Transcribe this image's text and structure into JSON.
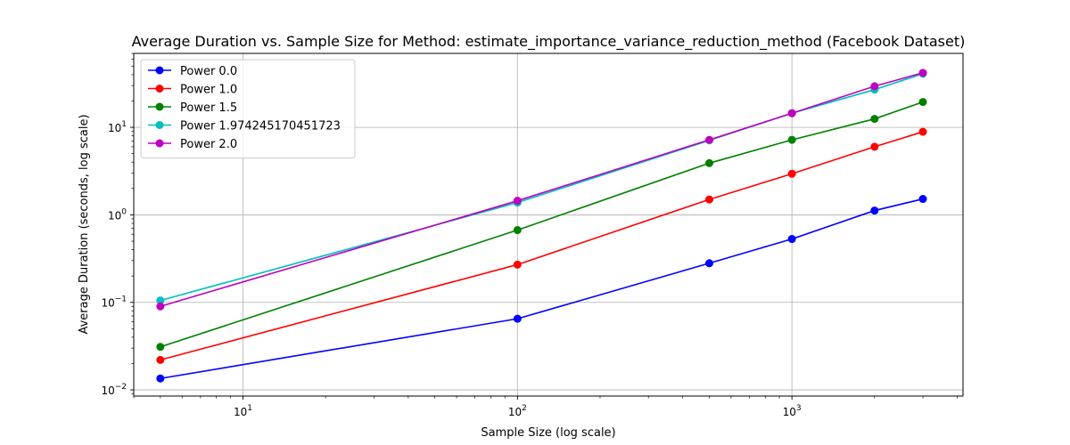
{
  "chart_data": {
    "type": "line",
    "title": "Average Duration vs. Sample Size for Method: estimate_importance_variance_reduction_method (Facebook Dataset)",
    "xlabel": "Sample Size (log scale)",
    "ylabel": "Average Duration (seconds, log scale)",
    "xscale": "log",
    "yscale": "log",
    "xlim": [
      4,
      4200
    ],
    "ylim": [
      0.0085,
      70
    ],
    "grid": true,
    "legend_position": "upper-left",
    "x_ticks": [
      {
        "value": 10,
        "base": "10",
        "exp": "1"
      },
      {
        "value": 100,
        "base": "10",
        "exp": "2"
      },
      {
        "value": 1000,
        "base": "10",
        "exp": "3"
      }
    ],
    "y_ticks": [
      {
        "value": 0.01,
        "base": "10",
        "exp": "−2"
      },
      {
        "value": 0.1,
        "base": "10",
        "exp": "−1"
      },
      {
        "value": 1,
        "base": "10",
        "exp": "0"
      },
      {
        "value": 10,
        "base": "10",
        "exp": "1"
      }
    ],
    "x": [
      5,
      100,
      500,
      1000,
      2000,
      3000
    ],
    "series": [
      {
        "name": "Power 0.0",
        "color": "#0000ff",
        "values": [
          0.0135,
          0.065,
          0.28,
          0.53,
          1.12,
          1.52
        ]
      },
      {
        "name": "Power 1.0",
        "color": "#ff0000",
        "values": [
          0.022,
          0.27,
          1.5,
          2.95,
          6.0,
          8.9
        ]
      },
      {
        "name": "Power 1.5",
        "color": "#008000",
        "values": [
          0.031,
          0.67,
          3.9,
          7.2,
          12.5,
          19.5
        ]
      },
      {
        "name": "Power 1.974245170451723",
        "color": "#00bfbf",
        "values": [
          0.105,
          1.38,
          7.1,
          14.5,
          27.0,
          41.0
        ]
      },
      {
        "name": "Power 2.0",
        "color": "#bf00bf",
        "values": [
          0.09,
          1.45,
          7.2,
          14.5,
          29.5,
          42.0
        ]
      }
    ]
  }
}
